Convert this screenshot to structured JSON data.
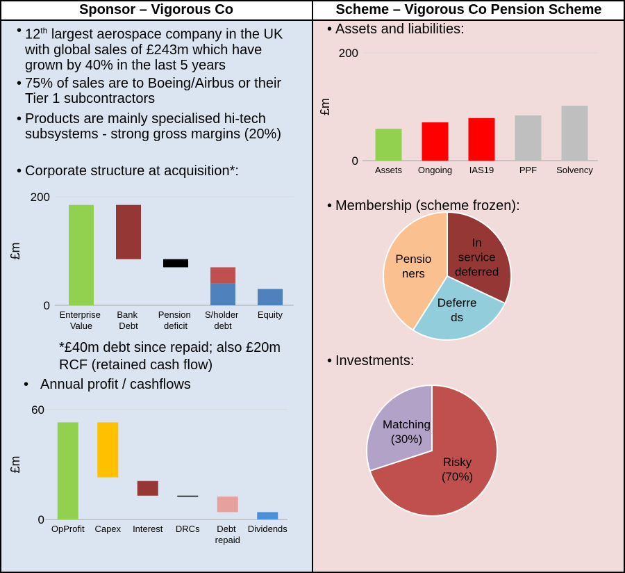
{
  "left_panel": {
    "heading": "Sponsor – Vigorous Co",
    "bullets": [
      {
        "prefix": "12",
        "superscript": "th",
        "text": " largest aerospace company in the UK with global sales of £243m which have grown by 40% in the last 5 years"
      },
      {
        "text": "75% of sales are to Boeing/Airbus or their Tier 1 subcontractors"
      },
      {
        "text": "Products are mainly specialised hi-tech subsystems - strong gross margins (20%)"
      },
      {
        "text": "Corporate structure at acquisition*:"
      }
    ],
    "footnote": "*£40m debt since repaid; also £20m RCF (retained cash flow)",
    "bullet_2": "Annual profit / cashflows"
  },
  "right_panel": {
    "heading": "Scheme – Vigorous Co Pension Scheme",
    "bullets": [
      "Assets and liabilities:",
      "Membership (scheme frozen):",
      "Investments:"
    ]
  },
  "chart_data": [
    {
      "type": "floating_bar",
      "ylabel": "£m",
      "categories": [
        "Enterprise Value",
        "Bank Debt",
        "Pension deficit",
        "S/holder debt",
        "Equity"
      ],
      "segments": [
        [
          {
            "range": [
              0,
              185
            ],
            "color": "#92d050"
          }
        ],
        [
          {
            "range": [
              85,
              185
            ],
            "color": "#953735"
          }
        ],
        [
          {
            "range": [
              70,
              85
            ],
            "color": "#000000"
          }
        ],
        [
          {
            "range": [
              40,
              70
            ],
            "color": "#c0504d"
          },
          {
            "range": [
              0,
              40
            ],
            "color": "#4f81bd"
          }
        ],
        [
          {
            "range": [
              0,
              30
            ],
            "color": "#4f81bd"
          }
        ]
      ],
      "ylim": [
        0,
        200
      ],
      "yticks": [
        0,
        200
      ],
      "grid": true
    },
    {
      "type": "floating_bar",
      "ylabel": "£m",
      "categories": [
        "OpProfit",
        "Capex",
        "Interest",
        "DRCs",
        "Debt repaid",
        "Dividends"
      ],
      "segments": [
        [
          {
            "range": [
              0,
              53
            ],
            "color": "#92d050"
          }
        ],
        [
          {
            "range": [
              23,
              53
            ],
            "color": "#ffc000"
          }
        ],
        [
          {
            "range": [
              13,
              21
            ],
            "color": "#953735"
          }
        ],
        [
          {
            "range": [
              12.5,
              13
            ],
            "color": "#000000"
          }
        ],
        [
          {
            "range": [
              4,
              12.5
            ],
            "color": "#e6a09e"
          }
        ],
        [
          {
            "range": [
              0,
              4
            ],
            "color": "#4a90d9"
          }
        ]
      ],
      "ylim": [
        0,
        60
      ],
      "yticks": [
        0,
        60
      ],
      "grid": true
    },
    {
      "type": "bar",
      "ylabel": "£m",
      "categories": [
        "Assets",
        "Ongoing",
        "IAS19",
        "PPF",
        "Solvency"
      ],
      "values": [
        59,
        71,
        79,
        84,
        102
      ],
      "colors": [
        "#92d050",
        "#ff0000",
        "#ff0000",
        "#bfbfbf",
        "#bfbfbf"
      ],
      "ylim": [
        0,
        200
      ],
      "yticks": [
        0,
        200
      ],
      "grid": true
    },
    {
      "type": "pie",
      "labels": [
        "In service deferred",
        "Deferreds",
        "Pensioners"
      ],
      "values": [
        32,
        27,
        41
      ],
      "colors": [
        "#953735",
        "#92cddc",
        "#fac090"
      ]
    },
    {
      "type": "pie",
      "labels": [
        "Risky",
        "Matching"
      ],
      "values": [
        70,
        30
      ],
      "value_labels": [
        "(70%)",
        "(30%)"
      ],
      "colors": [
        "#c0504d",
        "#b3a2c7"
      ]
    }
  ]
}
